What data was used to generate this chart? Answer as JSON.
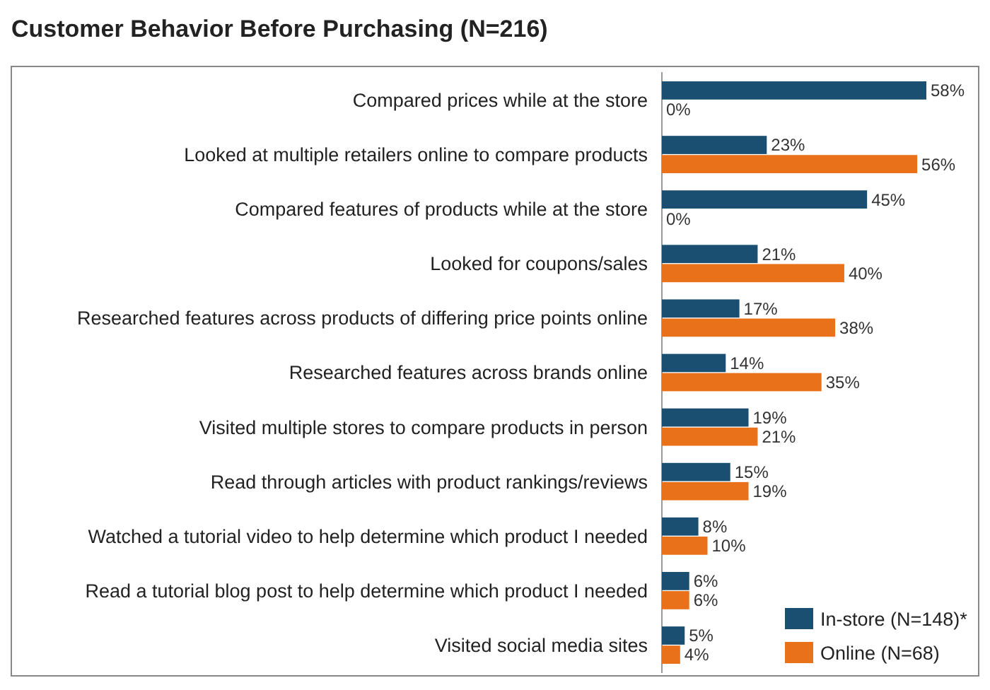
{
  "chart_data": {
    "type": "bar",
    "orientation": "horizontal",
    "title": "Customer Behavior Before Purchasing (N=216)",
    "categories": [
      "Compared prices while at the store",
      "Looked at multiple retailers online to compare products",
      "Compared features of products while at the store",
      "Looked for coupons/sales",
      "Researched features across products of differing price points online",
      "Researched features across brands online",
      "Visited multiple stores to compare products in person",
      "Read through articles with product rankings/reviews",
      "Watched a tutorial video to help determine which product I needed",
      "Read a tutorial blog post to help determine which product I needed",
      "Visited social media sites"
    ],
    "series": [
      {
        "name": "In-store (N=148)*",
        "color": "#1b4f72",
        "values": [
          58,
          23,
          45,
          21,
          17,
          14,
          19,
          15,
          8,
          6,
          5
        ],
        "value_labels": [
          "58%",
          "23%",
          "45%",
          "21%",
          "17%",
          "14%",
          "19%",
          "15%",
          "8%",
          "6%",
          "5%"
        ]
      },
      {
        "name": "Online (N=68)",
        "color": "#e8711a",
        "values": [
          0,
          56,
          0,
          40,
          38,
          35,
          21,
          19,
          10,
          6,
          4
        ],
        "value_labels": [
          "0%",
          "56%",
          "0%",
          "40%",
          "38%",
          "35%",
          "21%",
          "19%",
          "10%",
          "6%",
          "4%"
        ]
      }
    ],
    "legend": "bottom right"
  }
}
